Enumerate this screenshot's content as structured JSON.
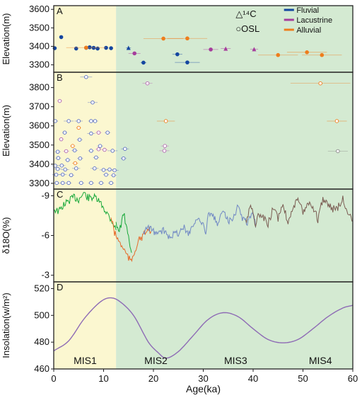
{
  "colors": {
    "holocene_bg": "#fbf7d0",
    "pleistocene_bg": "#d4ead2",
    "fluvial": "#1446a0",
    "lacustrine": "#a63d9c",
    "alluvial": "#ee7d1c",
    "osl_point": "#ffffff",
    "insolation": "#8e6bb5",
    "d18o_green": "#18a83a",
    "d18o_orange": "#e66a2a",
    "d18o_blue": "#7088c4",
    "d18o_brown": "#7a5c52"
  },
  "x_axis": {
    "label": "Age(ka)",
    "range": [
      0,
      60
    ],
    "ticks": [
      "0",
      "10",
      "20",
      "30",
      "40",
      "50",
      "60"
    ],
    "holocene_boundary": 12.5
  },
  "mis_labels": [
    {
      "label": "MIS1",
      "x": 6.3
    },
    {
      "label": "MIS2",
      "x": 20.5
    },
    {
      "label": "MIS3",
      "x": 36.5
    },
    {
      "label": "MIS4",
      "x": 53.5
    }
  ],
  "chart_data": [
    {
      "panel": "A",
      "type": "scatter",
      "ylabel": "Elevation(m)",
      "ylim": [
        3260,
        3620
      ],
      "yticks": [
        3300,
        3400,
        3500,
        3600
      ],
      "legend": {
        "c14_label": "△¹⁴C",
        "osl_label": "○OSL",
        "entries": [
          "Fluvial",
          "Lacustrine",
          "Alluvial"
        ]
      },
      "series": [
        {
          "name": "Fluvial",
          "method": "OSL",
          "points": [
            {
              "x": 0.2,
              "y": 3390,
              "err": 0.3
            },
            {
              "x": 1.5,
              "y": 3450,
              "err": 0.3
            },
            {
              "x": 4.5,
              "y": 3388,
              "err": 0.3
            },
            {
              "x": 6.5,
              "y": 3392,
              "err": 0.4
            },
            {
              "x": 7.2,
              "y": 3395,
              "err": 0.4
            },
            {
              "x": 8.0,
              "y": 3392,
              "err": 0.4
            },
            {
              "x": 8.8,
              "y": 3388,
              "err": 0.4
            },
            {
              "x": 10.5,
              "y": 3392,
              "err": 0.4
            },
            {
              "x": 11.5,
              "y": 3390,
              "err": 0.4
            },
            {
              "x": 18.0,
              "y": 3312,
              "err": 0.6
            },
            {
              "x": 24.8,
              "y": 3357,
              "err": 1.0
            },
            {
              "x": 26.8,
              "y": 3313,
              "err": 2.5
            }
          ]
        },
        {
          "name": "Fluvial",
          "method": "14C",
          "points": [
            {
              "x": 15.0,
              "y": 3392,
              "err": 0.5
            }
          ]
        },
        {
          "name": "Lacustrine",
          "method": "OSL",
          "points": [
            {
              "x": 16.2,
              "y": 3362,
              "err": 1.2
            },
            {
              "x": 31.5,
              "y": 3383,
              "err": 1.5
            }
          ]
        },
        {
          "name": "Lacustrine",
          "method": "14C",
          "points": [
            {
              "x": 34.5,
              "y": 3388,
              "err": 1.0
            },
            {
              "x": 40.2,
              "y": 3385,
              "err": 0.8
            }
          ]
        },
        {
          "name": "Alluvial",
          "method": "OSL",
          "points": [
            {
              "x": 6.5,
              "y": 3393,
              "err": 4.0
            },
            {
              "x": 22.0,
              "y": 3442,
              "err": 4.0
            },
            {
              "x": 26.8,
              "y": 3443,
              "err": 4.0
            },
            {
              "x": 45.0,
              "y": 3353,
              "err": 4.0
            },
            {
              "x": 50.8,
              "y": 3368,
              "err": 4.0
            },
            {
              "x": 53.8,
              "y": 3353,
              "err": 4.0
            }
          ]
        }
      ]
    },
    {
      "panel": "B",
      "type": "scatter",
      "ylabel": "Elevation(m)",
      "ylim": [
        3270,
        3880
      ],
      "yticks": [
        3300,
        3400,
        3500,
        3600,
        3700,
        3800
      ],
      "points": [
        {
          "x": 0.6,
          "y": 3302,
          "err": 0.6,
          "c": "b"
        },
        {
          "x": 1.8,
          "y": 3302,
          "err": 0.6,
          "c": "b"
        },
        {
          "x": 3.0,
          "y": 3302,
          "err": 0.6,
          "c": "b"
        },
        {
          "x": 5.5,
          "y": 3302,
          "err": 0.6,
          "c": "b"
        },
        {
          "x": 7.5,
          "y": 3302,
          "err": 0.6,
          "c": "b"
        },
        {
          "x": 9.5,
          "y": 3302,
          "err": 0.6,
          "c": "b"
        },
        {
          "x": 11.5,
          "y": 3302,
          "err": 0.6,
          "c": "b"
        },
        {
          "x": 0.5,
          "y": 3345,
          "err": 0.8,
          "c": "b"
        },
        {
          "x": 1.8,
          "y": 3346,
          "err": 0.8,
          "c": "b"
        },
        {
          "x": 3.5,
          "y": 3343,
          "err": 0.6,
          "c": "b"
        },
        {
          "x": 10.5,
          "y": 3345,
          "err": 0.6,
          "c": "b"
        },
        {
          "x": 12.0,
          "y": 3342,
          "err": 0.6,
          "c": "b"
        },
        {
          "x": 0.8,
          "y": 3375,
          "err": 0.8,
          "c": "b"
        },
        {
          "x": 2.3,
          "y": 3372,
          "err": 0.8,
          "c": "b"
        },
        {
          "x": 4.5,
          "y": 3378,
          "err": 0.8,
          "c": "b"
        },
        {
          "x": 8.2,
          "y": 3378,
          "err": 0.8,
          "c": "b"
        },
        {
          "x": 10.0,
          "y": 3370,
          "err": 0.8,
          "c": "b"
        },
        {
          "x": 11.2,
          "y": 3372,
          "err": 0.8,
          "c": "b"
        },
        {
          "x": 12.2,
          "y": 3368,
          "err": 0.8,
          "c": "b"
        },
        {
          "x": 0.3,
          "y": 3392,
          "err": 0.7,
          "c": "b"
        },
        {
          "x": 1.6,
          "y": 3393,
          "err": 0.7,
          "c": "b"
        },
        {
          "x": 4.3,
          "y": 3405,
          "err": 0.6,
          "c": "o"
        },
        {
          "x": 2.8,
          "y": 3422,
          "err": 0.6,
          "c": "b"
        },
        {
          "x": 5.3,
          "y": 3430,
          "err": 0.6,
          "c": "b"
        },
        {
          "x": 0.9,
          "y": 3432,
          "err": 0.6,
          "c": "b"
        },
        {
          "x": 8.5,
          "y": 3435,
          "err": 0.6,
          "c": "b"
        },
        {
          "x": 14.0,
          "y": 3430,
          "err": 0.6,
          "c": "b"
        },
        {
          "x": 0.8,
          "y": 3465,
          "err": 0.6,
          "c": "b"
        },
        {
          "x": 2.5,
          "y": 3468,
          "err": 0.6,
          "c": "p"
        },
        {
          "x": 4.2,
          "y": 3472,
          "err": 0.6,
          "c": "b"
        },
        {
          "x": 7.5,
          "y": 3470,
          "err": 0.6,
          "c": "b"
        },
        {
          "x": 9.0,
          "y": 3478,
          "err": 0.6,
          "c": "p"
        },
        {
          "x": 10.2,
          "y": 3475,
          "err": 0.6,
          "c": "p"
        },
        {
          "x": 11.8,
          "y": 3470,
          "err": 1.0,
          "c": "b"
        },
        {
          "x": 14.3,
          "y": 3480,
          "err": 0.8,
          "c": "b"
        },
        {
          "x": 22.2,
          "y": 3470,
          "err": 1.0,
          "c": "p"
        },
        {
          "x": 57.0,
          "y": 3468,
          "err": 2.0,
          "c": "g"
        },
        {
          "x": 3.8,
          "y": 3495,
          "err": 0.5,
          "c": "o"
        },
        {
          "x": 9.3,
          "y": 3495,
          "err": 0.6,
          "c": "b"
        },
        {
          "x": 22.3,
          "y": 3495,
          "err": 0.8,
          "c": "p"
        },
        {
          "x": 1.5,
          "y": 3530,
          "err": 0.5,
          "c": "p"
        },
        {
          "x": 5.2,
          "y": 3528,
          "err": 0.6,
          "c": "b"
        },
        {
          "x": 7.5,
          "y": 3560,
          "err": 0.8,
          "c": "b"
        },
        {
          "x": 9.0,
          "y": 3565,
          "err": 0.6,
          "c": "p"
        },
        {
          "x": 10.8,
          "y": 3565,
          "err": 0.6,
          "c": "b"
        },
        {
          "x": 2.2,
          "y": 3565,
          "err": 0.5,
          "c": "b"
        },
        {
          "x": 5.0,
          "y": 3590,
          "err": 0.5,
          "c": "o"
        },
        {
          "x": 0.3,
          "y": 3625,
          "err": 0.6,
          "c": "b"
        },
        {
          "x": 3.0,
          "y": 3625,
          "err": 1.0,
          "c": "b"
        },
        {
          "x": 5.0,
          "y": 3625,
          "err": 0.8,
          "c": "b"
        },
        {
          "x": 7.5,
          "y": 3625,
          "err": 0.6,
          "c": "b"
        },
        {
          "x": 8.3,
          "y": 3625,
          "err": 0.6,
          "c": "b"
        },
        {
          "x": 22.5,
          "y": 3625,
          "err": 1.8,
          "c": "o"
        },
        {
          "x": 56.8,
          "y": 3625,
          "err": 2.0,
          "c": "o"
        },
        {
          "x": 1.2,
          "y": 3730,
          "err": 0.5,
          "c": "p"
        },
        {
          "x": 7.8,
          "y": 3722,
          "err": 1.0,
          "c": "b"
        },
        {
          "x": 18.8,
          "y": 3822,
          "err": 1.0,
          "c": "p"
        },
        {
          "x": 53.5,
          "y": 3822,
          "err": 6.0,
          "c": "o"
        },
        {
          "x": 6.5,
          "y": 3855,
          "err": 1.2,
          "c": "b"
        }
      ]
    },
    {
      "panel": "C",
      "type": "line",
      "ylabel": "δ18O(%)",
      "ylim": [
        -2.5,
        -9.5
      ],
      "yticks": [
        -9,
        -6,
        -3
      ],
      "yticklabels": [
        "-9",
        "-6",
        "-3"
      ],
      "series": [
        {
          "color": "green",
          "points": [
            [
              0,
              -8.0
            ],
            [
              1,
              -7.8
            ],
            [
              2,
              -8.3
            ],
            [
              3,
              -8.6
            ],
            [
              4,
              -8.9
            ],
            [
              5,
              -8.7
            ],
            [
              6,
              -9.2
            ],
            [
              7,
              -8.8
            ],
            [
              8,
              -8.9
            ],
            [
              9,
              -8.6
            ],
            [
              10,
              -8.1
            ],
            [
              11,
              -7.5
            ],
            [
              12,
              -6.9
            ],
            [
              12.5,
              -6.4
            ]
          ]
        },
        {
          "color": "orange",
          "points": [
            [
              11.5,
              -7.4
            ],
            [
              12.2,
              -6.2
            ],
            [
              13,
              -5.6
            ],
            [
              14,
              -5.0
            ],
            [
              15,
              -4.3
            ],
            [
              15.5,
              -4.0
            ],
            [
              16.5,
              -5.1
            ],
            [
              17,
              -5.6
            ],
            [
              18,
              -6.0
            ],
            [
              19,
              -6.5
            ],
            [
              19.5,
              -6.3
            ]
          ]
        },
        {
          "color": "green",
          "points": [
            [
              12.5,
              -7.0
            ],
            [
              13,
              -6.2
            ],
            [
              13.5,
              -6.8
            ],
            [
              14,
              -7.7
            ],
            [
              14.5,
              -6.8
            ],
            [
              15,
              -5.8
            ],
            [
              15.3,
              -5.1
            ],
            [
              15.6,
              -4.7
            ]
          ]
        },
        {
          "color": "blue",
          "points": [
            [
              18,
              -6.2
            ],
            [
              19,
              -6.6
            ],
            [
              20,
              -6.3
            ],
            [
              21,
              -6.1
            ],
            [
              22,
              -6.4
            ],
            [
              23,
              -6.0
            ],
            [
              24,
              -6.1
            ],
            [
              25,
              -6.2
            ],
            [
              26,
              -6.6
            ],
            [
              27,
              -6.2
            ],
            [
              28,
              -6.8
            ],
            [
              29,
              -7.3
            ],
            [
              30,
              -7.0
            ],
            [
              30.5,
              -6.0
            ],
            [
              31,
              -7.6
            ],
            [
              32,
              -7.4
            ],
            [
              33,
              -6.8
            ],
            [
              34,
              -8.1
            ],
            [
              35,
              -7.1
            ],
            [
              36,
              -7.4
            ],
            [
              37,
              -8.2
            ],
            [
              38,
              -7.2
            ],
            [
              39,
              -7.0
            ],
            [
              40,
              -7.8
            ],
            [
              40.5,
              -6.6
            ]
          ]
        },
        {
          "color": "brown",
          "points": [
            [
              38.5,
              -7.0
            ],
            [
              39.5,
              -8.3
            ],
            [
              40.5,
              -6.8
            ],
            [
              41,
              -7.5
            ],
            [
              42,
              -7.3
            ],
            [
              43,
              -6.9
            ],
            [
              44,
              -8.0
            ],
            [
              45,
              -7.3
            ],
            [
              46,
              -8.4
            ],
            [
              47,
              -7.0
            ],
            [
              48,
              -8.2
            ],
            [
              49,
              -8.6
            ],
            [
              50,
              -7.8
            ],
            [
              51,
              -8.5
            ],
            [
              52,
              -8.2
            ],
            [
              53,
              -7.2
            ],
            [
              54,
              -8.8
            ],
            [
              55,
              -8.4
            ],
            [
              56,
              -8.0
            ],
            [
              57,
              -8.1
            ],
            [
              58,
              -8.8
            ],
            [
              59,
              -7.8
            ],
            [
              60,
              -7.1
            ]
          ]
        }
      ]
    },
    {
      "panel": "D",
      "type": "line",
      "ylabel": "Insolation(w/m²)",
      "ylim": [
        460,
        525
      ],
      "yticks": [
        460,
        480,
        500,
        520
      ],
      "series": [
        {
          "name": "",
          "points": [
            [
              0,
              473.5
            ],
            [
              3,
              481
            ],
            [
              6,
              497
            ],
            [
              9,
              509
            ],
            [
              11,
              513
            ],
            [
              13,
              511
            ],
            [
              16,
              500
            ],
            [
              19,
              480
            ],
            [
              21,
              472
            ],
            [
              22.5,
              468
            ],
            [
              25,
              473
            ],
            [
              28,
              485
            ],
            [
              31,
              497
            ],
            [
              34,
              502
            ],
            [
              37,
              499
            ],
            [
              40,
              490
            ],
            [
              43,
              482
            ],
            [
              46,
              479.5
            ],
            [
              49,
              482
            ],
            [
              52,
              490
            ],
            [
              55,
              499
            ],
            [
              58,
              505.5
            ],
            [
              60,
              507.5
            ]
          ]
        }
      ]
    }
  ]
}
